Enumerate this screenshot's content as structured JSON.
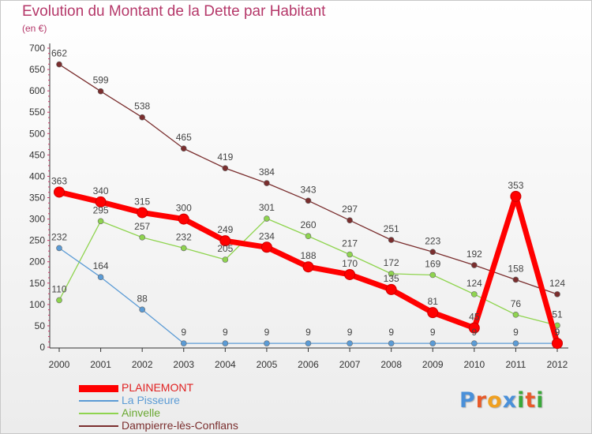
{
  "title": "Evolution du Montant de la Dette par Habitant",
  "subtitle": "(en €)",
  "logo_text": "Proxiti",
  "colors": {
    "title": "#b5396a",
    "axis": "#333333",
    "grid_ticks": "#cc3366",
    "logo_letters": [
      "#4a90d9",
      "#e85a2a",
      "#f0a020",
      "#4a90d9",
      "#3aa83a",
      "#e85a2a",
      "#3aa83a"
    ]
  },
  "chart_data": {
    "type": "line",
    "x": [
      "2000",
      "2001",
      "2002",
      "2003",
      "2004",
      "2005",
      "2006",
      "2007",
      "2008",
      "2009",
      "2010",
      "2011",
      "2012"
    ],
    "ylim": [
      0,
      700
    ],
    "yticks": [
      0,
      50,
      100,
      150,
      200,
      250,
      300,
      350,
      400,
      450,
      500,
      550,
      600,
      650,
      700
    ],
    "grid": false,
    "legend_position": "bottom-left",
    "series": [
      {
        "name": "Dampierre-lès-Conflans",
        "color": "#7a2e2e",
        "values": [
          662,
          599,
          538,
          465,
          419,
          384,
          343,
          297,
          251,
          223,
          192,
          158,
          124
        ],
        "labels": [
          "662",
          "599",
          "538",
          "465",
          "419",
          "384",
          "343",
          "297",
          "251",
          "223",
          "192",
          "158",
          "124"
        ]
      },
      {
        "name": "Ainvelle",
        "color": "#8fd44f",
        "values": [
          110,
          295,
          257,
          232,
          205,
          301,
          260,
          217,
          172,
          169,
          124,
          76,
          51
        ],
        "labels": [
          "110",
          "295",
          "257",
          "232",
          "205",
          "301",
          "260",
          "217",
          "172",
          "169",
          "124",
          "76",
          "51"
        ]
      },
      {
        "name": "La Pisseure",
        "color": "#5b9bd5",
        "values": [
          232,
          164,
          88,
          9,
          9,
          9,
          9,
          9,
          9,
          9,
          9,
          9,
          9
        ],
        "labels": [
          "232",
          "164",
          "88",
          "9",
          "9",
          "9",
          "9",
          "9",
          "9",
          "9",
          "9",
          "9",
          "9"
        ]
      },
      {
        "name": "PLAINEMONT",
        "color": "#ff0000",
        "values": [
          363,
          340,
          315,
          300,
          249,
          234,
          188,
          170,
          135,
          81,
          45,
          353,
          9
        ],
        "labels": [
          "363",
          "340",
          "315",
          "300",
          "249",
          "234",
          "188",
          "170",
          "135",
          "81",
          "45",
          "353",
          "9"
        ]
      }
    ],
    "legend": [
      "PLAINEMONT",
      "La Pisseure",
      "Ainvelle",
      "Dampierre-lès-Conflans"
    ]
  }
}
